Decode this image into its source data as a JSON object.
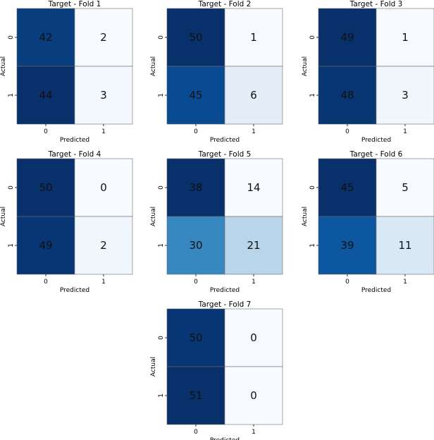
{
  "chart_data": [
    {
      "type": "heatmap",
      "title": "Target - Fold 1",
      "xlabel": "Predicted",
      "ylabel": "Actual",
      "x_categories": [
        "0",
        "1"
      ],
      "y_categories": [
        "0",
        "1"
      ],
      "values": [
        [
          42,
          2
        ],
        [
          44,
          3
        ]
      ],
      "colormap": "Blues"
    },
    {
      "type": "heatmap",
      "title": "Target - Fold 2",
      "xlabel": "Predicted",
      "ylabel": "Actual",
      "x_categories": [
        "0",
        "1"
      ],
      "y_categories": [
        "0",
        "1"
      ],
      "values": [
        [
          50,
          1
        ],
        [
          45,
          6
        ]
      ],
      "colormap": "Blues"
    },
    {
      "type": "heatmap",
      "title": "Target - Fold 3",
      "xlabel": "Predicted",
      "ylabel": "Actual",
      "x_categories": [
        "0",
        "1"
      ],
      "y_categories": [
        "0",
        "1"
      ],
      "values": [
        [
          49,
          1
        ],
        [
          48,
          3
        ]
      ],
      "colormap": "Blues"
    },
    {
      "type": "heatmap",
      "title": "Target - Fold 4",
      "xlabel": "Predicted",
      "ylabel": "Actual",
      "x_categories": [
        "0",
        "1"
      ],
      "y_categories": [
        "0",
        "1"
      ],
      "values": [
        [
          50,
          0
        ],
        [
          49,
          2
        ]
      ],
      "colormap": "Blues"
    },
    {
      "type": "heatmap",
      "title": "Target - Fold 5",
      "xlabel": "Predicted",
      "ylabel": "Actual",
      "x_categories": [
        "0",
        "1"
      ],
      "y_categories": [
        "0",
        "1"
      ],
      "values": [
        [
          38,
          14
        ],
        [
          30,
          21
        ]
      ],
      "colormap": "Blues"
    },
    {
      "type": "heatmap",
      "title": "Target - Fold 6",
      "xlabel": "Predicted",
      "ylabel": "Actual",
      "x_categories": [
        "0",
        "1"
      ],
      "y_categories": [
        "0",
        "1"
      ],
      "values": [
        [
          45,
          5
        ],
        [
          39,
          11
        ]
      ],
      "colormap": "Blues"
    },
    {
      "type": "heatmap",
      "title": "Target - Fold 7",
      "xlabel": "Predicted",
      "ylabel": "Actual",
      "x_categories": [
        "0",
        "1"
      ],
      "y_categories": [
        "0",
        "1"
      ],
      "values": [
        [
          50,
          0
        ],
        [
          51,
          0
        ]
      ],
      "colormap": "Blues"
    }
  ]
}
